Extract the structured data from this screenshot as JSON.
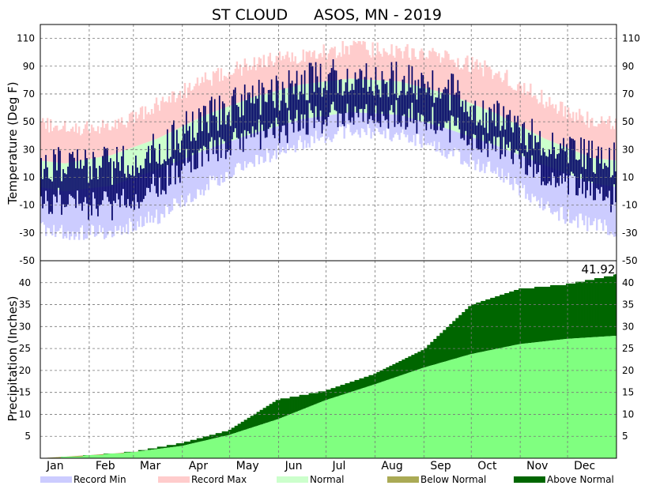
{
  "chart_data": {
    "type": "area",
    "title_station": "ST CLOUD",
    "title_rest": "ASOS, MN - 2019",
    "months": [
      "Jan",
      "Feb",
      "Mar",
      "Apr",
      "May",
      "Jun",
      "Jul",
      "Aug",
      "Sep",
      "Oct",
      "Nov",
      "Dec"
    ],
    "month_days": [
      31,
      28,
      31,
      30,
      31,
      30,
      31,
      31,
      30,
      31,
      30,
      31
    ],
    "legend": [
      {
        "label": "Record Min",
        "color": "#ccccff"
      },
      {
        "label": "Record Max",
        "color": "#ffcccc"
      },
      {
        "label": "Normal",
        "color": "#ccffcc"
      },
      {
        "label": "Below Normal",
        "color": "#aaaa55"
      },
      {
        "label": "Above Normal",
        "color": "#006600"
      }
    ],
    "colors": {
      "observed": "#000066",
      "record_max": "#ffcccc",
      "record_min": "#ccccff",
      "normal": "#ccffcc",
      "normal_precip": "#80ff80",
      "above_normal": "#006600",
      "below_normal": "#aaaa55"
    },
    "temperature": {
      "ylabel": "Temperature (Deg F)",
      "ylim": [
        -50,
        120
      ],
      "ticks": [
        -50,
        -30,
        -10,
        10,
        30,
        50,
        70,
        90,
        110
      ],
      "grid": true,
      "record_max_monthly": [
        45,
        47,
        62,
        80,
        92,
        98,
        103,
        101,
        96,
        86,
        66,
        50
      ],
      "record_min_monthly": [
        -30,
        -30,
        -18,
        4,
        22,
        35,
        45,
        40,
        28,
        15,
        -12,
        -25
      ],
      "normal_high_monthly": [
        20,
        26,
        38,
        55,
        68,
        77,
        81,
        79,
        70,
        56,
        38,
        24
      ],
      "normal_low_monthly": [
        0,
        4,
        16,
        30,
        42,
        52,
        57,
        55,
        45,
        33,
        19,
        6
      ],
      "observed_high_monthly": [
        20,
        18,
        30,
        55,
        65,
        78,
        83,
        79,
        73,
        52,
        35,
        24
      ],
      "observed_low_monthly": [
        -5,
        -8,
        8,
        32,
        42,
        53,
        60,
        57,
        50,
        35,
        15,
        2
      ]
    },
    "precipitation": {
      "ylabel": "Precipitation (Inches)",
      "ylim": [
        0,
        45
      ],
      "ticks": [
        5,
        10,
        15,
        20,
        25,
        30,
        35,
        40
      ],
      "grid": true,
      "total_label": "41.92",
      "observed_cumulative_monthly_end": [
        0.8,
        1.6,
        3.6,
        6.5,
        13.5,
        15.5,
        19.3,
        24.8,
        35.0,
        38.7,
        39.8,
        41.92
      ],
      "normal_cumulative_monthly_end": [
        0.7,
        1.4,
        2.8,
        5.3,
        8.9,
        13.2,
        16.8,
        20.6,
        23.7,
        26.0,
        27.2,
        27.9
      ]
    }
  }
}
